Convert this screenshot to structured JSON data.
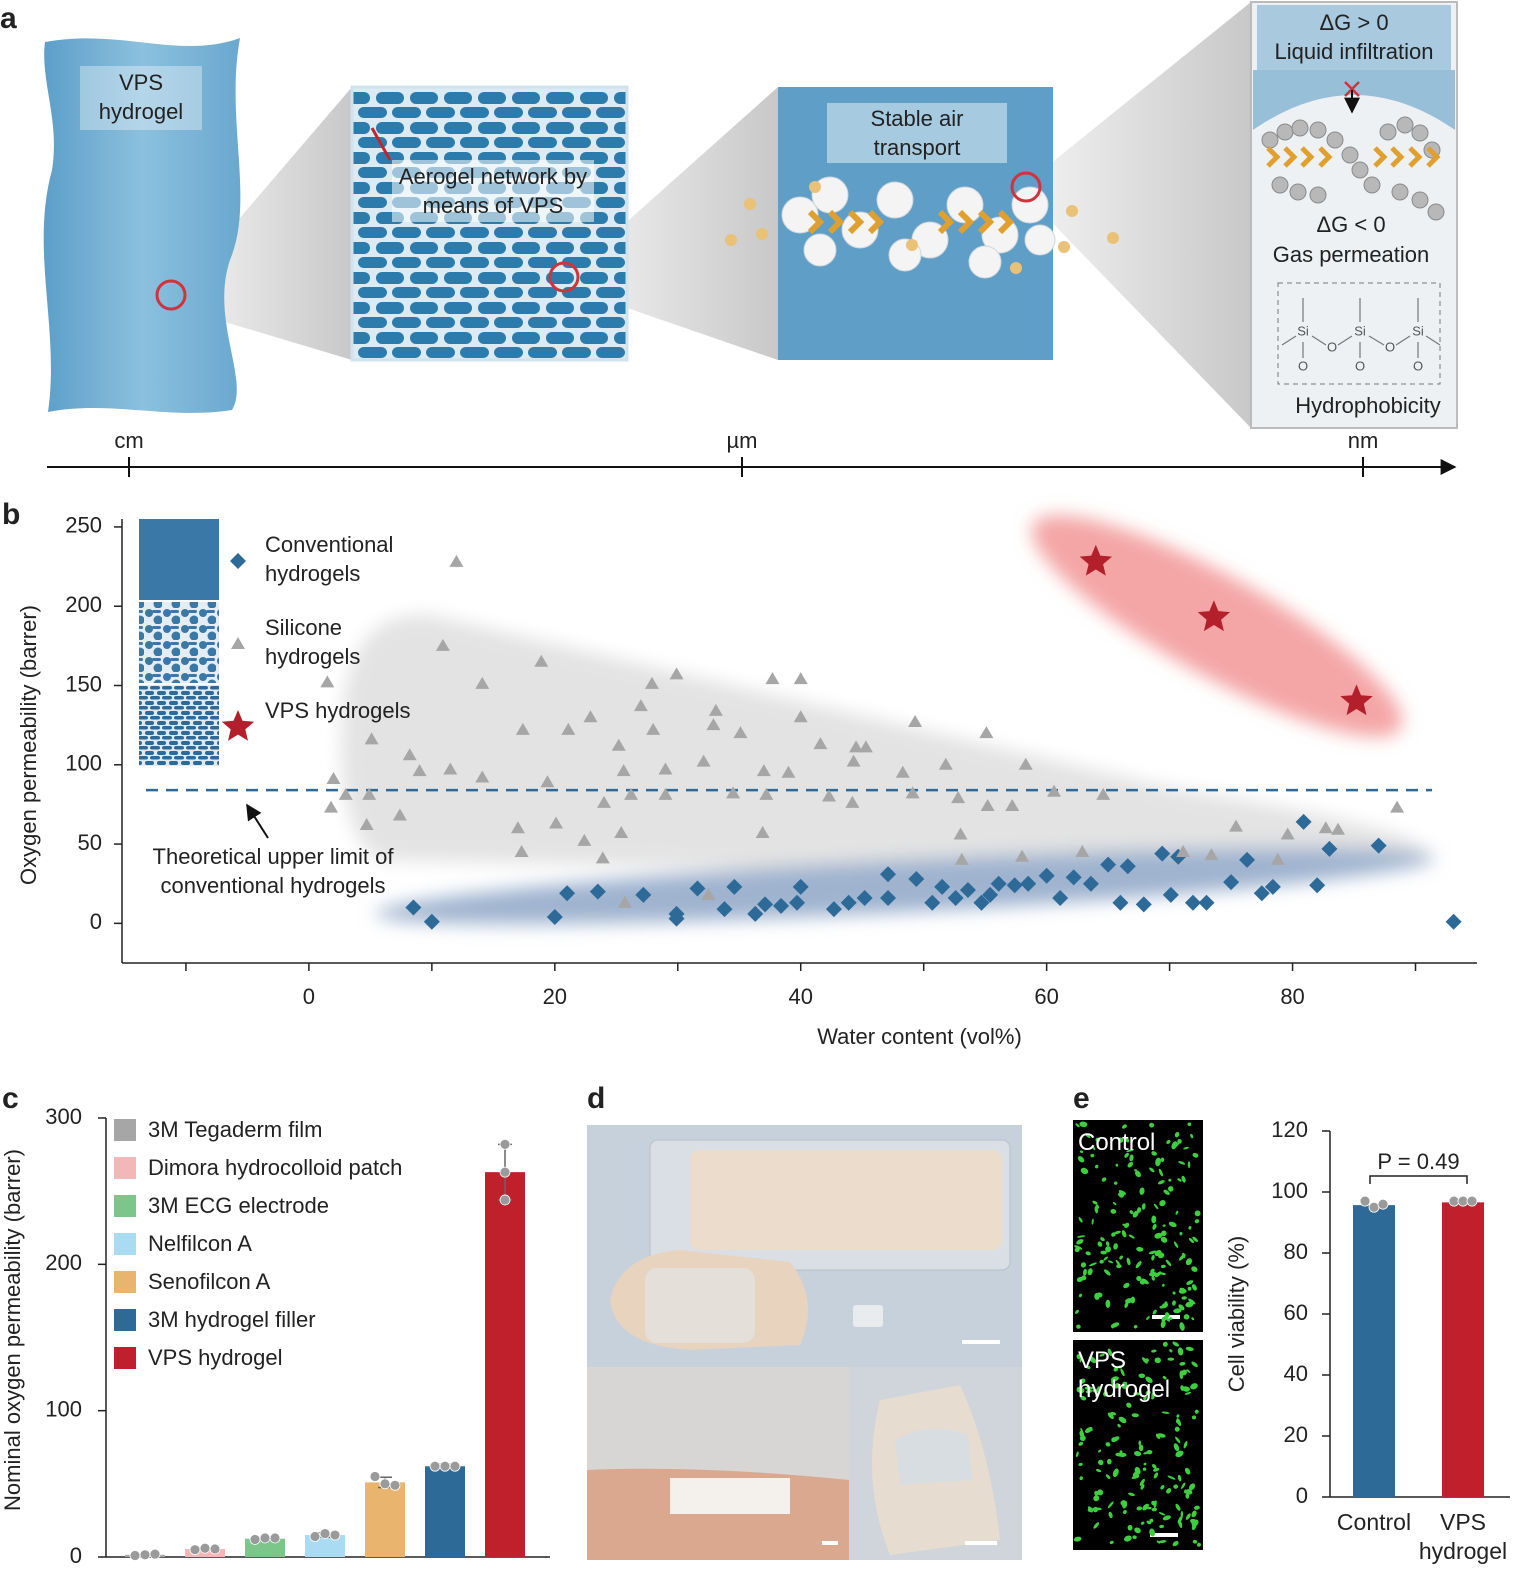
{
  "figure": {
    "panel_labels": [
      "a",
      "b",
      "c",
      "d",
      "e"
    ],
    "panel_a": {
      "hydrogel_label": "VPS hydrogel",
      "network_label": "Aerogel network by means of VPS",
      "transport_label": "Stable air transport",
      "dg_positive": "ΔG > 0",
      "liquid": "Liquid infiltration",
      "dg_negative": "ΔG < 0",
      "gas": "Gas permeation",
      "hydrophobicity": "Hydrophobicity",
      "atoms": [
        "Si",
        "Si",
        "Si",
        "O",
        "O",
        "O",
        "O",
        "O"
      ],
      "scale_labels": [
        "cm",
        "µm",
        "nm"
      ]
    },
    "panel_e_images": [
      "Control",
      "VPS hydrogel"
    ]
  },
  "chart_data": [
    {
      "type": "scatter",
      "xlabel": "Water content (vol%)",
      "ylabel": "Oxygen permeability (barrer)",
      "xlim": [
        -15.2,
        95
      ],
      "ylim": [
        -25,
        255
      ],
      "xticks": [
        0,
        20,
        40,
        60,
        80
      ],
      "xminorticks": [
        -10,
        10,
        30,
        50,
        70,
        90
      ],
      "yticks": [
        0,
        50,
        100,
        150,
        200,
        250
      ],
      "legend": "upper left",
      "series": [
        {
          "name": "Conventional hydrogels",
          "color": "#2e6a98",
          "marker": "diamond",
          "x": [
            8.5,
            10.0,
            20.0,
            21.0,
            23.5,
            27.2,
            29.9,
            29.9,
            31.6,
            34.6,
            33.8,
            36.3,
            37.1,
            38.4,
            39.7,
            40.0,
            42.7,
            43.9,
            45.2,
            47.1,
            47.1,
            49.4,
            50.7,
            51.5,
            52.6,
            53.6,
            54.7,
            55.4,
            56.1,
            57.4,
            58.5,
            60.0,
            61.1,
            62.2,
            63.6,
            65.0,
            66.0,
            66.6,
            67.9,
            69.4,
            70.1,
            70.7,
            71.9,
            73.0,
            75.0,
            76.3,
            77.5,
            78.4,
            80.9,
            82.0,
            83.0,
            87.0,
            93.1
          ],
          "y": [
            10,
            1,
            4,
            19,
            20,
            18,
            6,
            3,
            22,
            23,
            9,
            6,
            12,
            11,
            13,
            23,
            9,
            13,
            16,
            31,
            16,
            28,
            13,
            23,
            16,
            21,
            13,
            18,
            25,
            24,
            25,
            30,
            16,
            29,
            25,
            37,
            13,
            36,
            12,
            44,
            18,
            42,
            13,
            13,
            26,
            40,
            19,
            23,
            64,
            24,
            47,
            49,
            1
          ]
        },
        {
          "name": "Silicone hydrogels",
          "color": "#a6a6a6",
          "marker": "triangle",
          "x": [
            12.0,
            1.5,
            10.9,
            18.9,
            14.1,
            27.9,
            29.9,
            37.7,
            40.0,
            22.9,
            27.0,
            33.1,
            40.0,
            17.4,
            21.1,
            25.2,
            28.0,
            32.9,
            35.1,
            41.6,
            44.5,
            45.3,
            49.3,
            55.1,
            8.2,
            5.1,
            9.0,
            11.5,
            14.1,
            19.4,
            25.6,
            29.0,
            32.1,
            37.0,
            39.0,
            44.3,
            48.3,
            51.8,
            58.3,
            2.0,
            3.0,
            4.9,
            1.8,
            4.7,
            7.4,
            17.0,
            20.1,
            22.4,
            24.0,
            26.2,
            29.0,
            34.5,
            37.2,
            42.3,
            44.2,
            49.1,
            52.8,
            55.2,
            57.2,
            60.6,
            64.6,
            17.3,
            23.9,
            25.4,
            36.9,
            53.0,
            53.1,
            58.0,
            62.9,
            71.1,
            75.4,
            79.6,
            82.7,
            83.7,
            88.5,
            73.4,
            78.8,
            25.7,
            32.5
          ],
          "y": [
            228,
            152,
            175,
            165,
            151,
            151,
            157,
            154,
            154,
            130,
            137,
            134,
            130,
            122,
            122,
            112,
            122,
            125,
            120,
            113,
            111,
            111,
            127,
            120,
            106,
            116,
            96,
            97,
            92,
            89,
            96,
            97,
            102,
            96,
            95,
            102,
            95,
            100,
            100,
            91,
            81,
            81,
            73,
            62,
            68,
            60,
            63,
            52,
            76,
            81,
            81,
            82,
            81,
            80,
            76,
            82,
            79,
            74,
            74,
            83,
            81,
            45,
            41,
            57,
            57,
            56,
            40,
            42,
            45,
            45,
            61,
            56,
            60,
            59,
            73,
            43,
            40,
            13,
            18
          ]
        },
        {
          "name": "VPS hydrogels",
          "color": "#b31f2a",
          "marker": "star",
          "x": [
            64.0,
            73.6,
            85.2
          ],
          "y": [
            228,
            193,
            140
          ]
        }
      ],
      "reference_line": {
        "value": 84,
        "label": "Theoretical upper limit of conventional hydrogels",
        "color": "#2e6a98"
      }
    },
    {
      "type": "bar",
      "ylabel": "Nominal oxygen permeability (barrer)",
      "ylim": [
        0,
        300
      ],
      "yticks": [
        0,
        100,
        200,
        300
      ],
      "legend": "upper left",
      "categories": [
        "3M Tegaderm film",
        "Dimora hydrocolloid patch",
        "3M ECG electrode",
        "Nelfilcon A",
        "Senofilcon A",
        "3M hydrogel filler",
        "VPS hydrogel"
      ],
      "colors": [
        "#a6a6a6",
        "#f2b8b8",
        "#7cc68a",
        "#a9dcf2",
        "#e8b46e",
        "#2e6a98",
        "#c01f2c"
      ],
      "values": [
        1.5,
        5.5,
        12.5,
        15,
        51,
        62,
        263
      ],
      "errors": [
        0.8,
        1,
        1,
        1.5,
        3.5,
        1.5,
        19
      ],
      "points": [
        [
          1,
          1.5,
          2
        ],
        [
          5,
          6,
          5.5
        ],
        [
          12,
          13,
          13
        ],
        [
          14,
          16,
          15
        ],
        [
          55,
          50,
          49
        ],
        [
          62,
          62,
          62
        ],
        [
          282,
          263,
          244
        ]
      ]
    },
    {
      "type": "bar",
      "ylabel": "Cell viability (%)",
      "ylim": [
        0,
        120
      ],
      "yticks": [
        0,
        20,
        40,
        60,
        80,
        100,
        120
      ],
      "categories": [
        "Control",
        "VPS hydrogel"
      ],
      "colors": [
        "#2e6a98",
        "#c01f2c"
      ],
      "values": [
        95.7,
        96.6
      ],
      "points": [
        [
          97,
          95,
          96
        ],
        [
          97,
          97,
          97
        ]
      ],
      "annotation": "P = 0.49"
    }
  ]
}
